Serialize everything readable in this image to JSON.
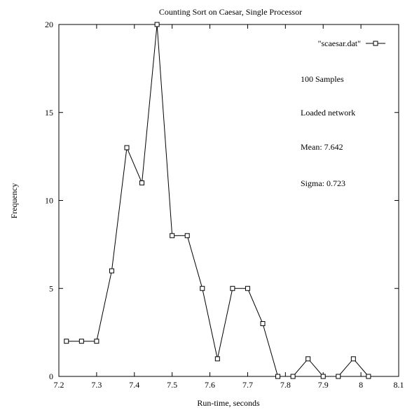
{
  "chart_data": {
    "type": "line",
    "title": "Counting Sort on Caesar, Single Processor",
    "xlabel": "Run-time, seconds",
    "ylabel": "Frequency",
    "xlim": [
      7.2,
      8.1
    ],
    "ylim": [
      0,
      20
    ],
    "xticks": [
      "7.2",
      "7.3",
      "7.4",
      "7.5",
      "7.6",
      "7.7",
      "7.8",
      "7.9",
      "8",
      "8.1"
    ],
    "yticks": [
      "0",
      "5",
      "10",
      "15",
      "20"
    ],
    "grid": false,
    "legend_position": "top-right",
    "series": [
      {
        "name": "\"scaesar.dat\"",
        "marker": "open-square",
        "color": "#000000",
        "points": [
          [
            7.22,
            2
          ],
          [
            7.26,
            2
          ],
          [
            7.3,
            2
          ],
          [
            7.34,
            6
          ],
          [
            7.38,
            13
          ],
          [
            7.42,
            11
          ],
          [
            7.46,
            20
          ],
          [
            7.5,
            8
          ],
          [
            7.54,
            8
          ],
          [
            7.58,
            5
          ],
          [
            7.62,
            1
          ],
          [
            7.66,
            5
          ],
          [
            7.7,
            5
          ],
          [
            7.74,
            3
          ],
          [
            7.78,
            0
          ],
          [
            7.82,
            0
          ],
          [
            7.86,
            1
          ],
          [
            7.9,
            0
          ],
          [
            7.94,
            0
          ],
          [
            7.98,
            1
          ],
          [
            8.02,
            0
          ]
        ]
      }
    ],
    "annotations": [
      "100 Samples",
      "Loaded network",
      "Mean:  7.642",
      "Sigma:  0.723"
    ]
  }
}
